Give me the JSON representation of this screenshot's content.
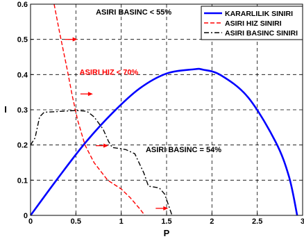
{
  "chart_data": {
    "type": "line",
    "xlabel": "P",
    "ylabel": "I",
    "xlim": [
      0,
      3
    ],
    "ylim": [
      0,
      0.6
    ],
    "xticks": [
      "0",
      "0.5",
      "1",
      "1.5",
      "2",
      "2.5",
      "3"
    ],
    "yticks": [
      "0",
      "0.1",
      "0.2",
      "0.3",
      "0.4",
      "0.5",
      "0.6"
    ],
    "grid": true,
    "legend_position": "top-right",
    "series": [
      {
        "name": "KARARLILIK SINIRI",
        "color": "#0000ff",
        "style": "solid",
        "x": [
          0,
          0.3,
          0.6,
          0.9,
          1.2,
          1.5,
          1.8,
          1.9,
          2.1,
          2.4,
          2.7,
          2.85,
          2.94
        ],
        "y": [
          0,
          0.105,
          0.205,
          0.29,
          0.36,
          0.403,
          0.415,
          0.414,
          0.398,
          0.335,
          0.21,
          0.11,
          0
        ]
      },
      {
        "name": "ASIRI HIZ SINIRI",
        "color": "#ff0000",
        "style": "dashed",
        "x": [
          0.26,
          0.32,
          0.4,
          0.46,
          0.52,
          0.6,
          0.7,
          0.85,
          1.0,
          1.1,
          1.2,
          1.26
        ],
        "y": [
          0.6,
          0.52,
          0.42,
          0.34,
          0.27,
          0.2,
          0.15,
          0.1,
          0.075,
          0.05,
          0.02,
          0
        ]
      },
      {
        "name": "ASIRI BASINC SINIRI",
        "color": "#000000",
        "style": "dashdot",
        "x": [
          0,
          0.05,
          0.1,
          0.15,
          0.3,
          0.5,
          0.62,
          0.7,
          0.8,
          0.86,
          0.9,
          0.98,
          1.05,
          1.15,
          1.25,
          1.3,
          1.42,
          1.48,
          1.52,
          1.56
        ],
        "y": [
          0.2,
          0.22,
          0.28,
          0.293,
          0.295,
          0.298,
          0.296,
          0.28,
          0.245,
          0.21,
          0.193,
          0.19,
          0.187,
          0.175,
          0.12,
          0.083,
          0.078,
          0.06,
          0.03,
          0
        ]
      }
    ],
    "annotations": [
      {
        "text": "ASIRI BASINC < 55%",
        "x": 0.72,
        "y": 0.57,
        "color": "#000000"
      },
      {
        "text": "ASIRI HIZ < 70%",
        "x": 0.54,
        "y": 0.4,
        "color": "#ff0000"
      },
      {
        "text": "ASIRI BASINC = 54%",
        "x": 1.27,
        "y": 0.18,
        "color": "#000000"
      }
    ],
    "arrows": [
      {
        "x": 0.38,
        "y": 0.5,
        "color": "#ff0000"
      },
      {
        "x": 0.55,
        "y": 0.345,
        "color": "#ff0000"
      },
      {
        "x": 0.72,
        "y": 0.198,
        "color": "#ff0000"
      },
      {
        "x": 1.38,
        "y": 0.02,
        "color": "#ff0000"
      }
    ]
  }
}
